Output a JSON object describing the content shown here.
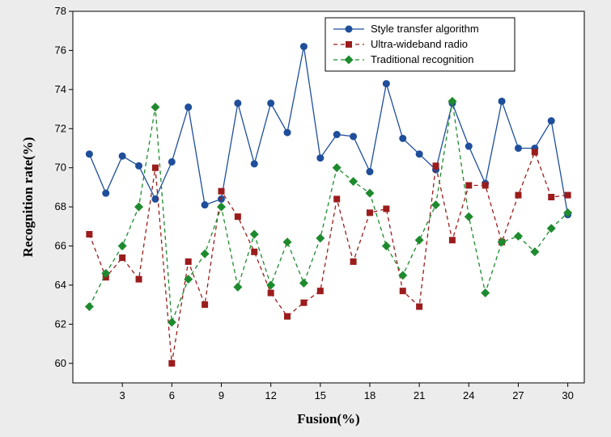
{
  "chart_data": {
    "type": "line",
    "xlabel": "Fusion(%)",
    "ylabel": "Recognition rate(%)",
    "xlim": [
      0,
      31
    ],
    "ylim": [
      59,
      78
    ],
    "xticks": [
      3,
      6,
      9,
      12,
      15,
      18,
      21,
      24,
      27,
      30
    ],
    "yticks": [
      60,
      62,
      64,
      66,
      68,
      70,
      72,
      74,
      76,
      78
    ],
    "grid": false,
    "legend_position": "top-right",
    "x": [
      1,
      2,
      3,
      4,
      5,
      6,
      7,
      8,
      9,
      10,
      11,
      12,
      13,
      14,
      15,
      16,
      17,
      18,
      19,
      20,
      21,
      22,
      23,
      24,
      25,
      26,
      27,
      28,
      29,
      30
    ],
    "series": [
      {
        "name": "Style transfer algorithm",
        "color": "#1f4e9a",
        "marker": "circle",
        "dash": "solid",
        "values": [
          70.7,
          68.7,
          70.6,
          70.1,
          68.4,
          70.3,
          73.1,
          68.1,
          68.4,
          73.3,
          70.2,
          73.3,
          71.8,
          76.2,
          70.5,
          71.7,
          71.6,
          69.8,
          74.3,
          71.5,
          70.7,
          69.9,
          73.3,
          71.1,
          69.2,
          73.4,
          71.0,
          71.0,
          72.4,
          67.6
        ]
      },
      {
        "name": "Ultra-wideband radio",
        "color": "#9b1c1c",
        "marker": "square",
        "dash": "dashed",
        "values": [
          66.6,
          64.4,
          65.4,
          64.3,
          70.0,
          60.0,
          65.2,
          63.0,
          68.8,
          67.5,
          65.7,
          63.6,
          62.4,
          63.1,
          63.7,
          68.4,
          65.2,
          67.7,
          67.9,
          63.7,
          62.9,
          70.1,
          66.3,
          69.1,
          69.1,
          66.2,
          68.6,
          70.8,
          68.5,
          68.6
        ]
      },
      {
        "name": "Traditional recognition",
        "color": "#1e8a2e",
        "marker": "diamond",
        "dash": "dashed",
        "values": [
          62.9,
          64.6,
          66.0,
          68.0,
          73.1,
          62.1,
          64.3,
          65.6,
          68.0,
          63.9,
          66.6,
          64.0,
          66.2,
          64.1,
          66.4,
          70.0,
          69.3,
          68.7,
          66.0,
          64.5,
          66.3,
          68.1,
          73.4,
          67.5,
          63.6,
          66.2,
          66.5,
          65.7,
          66.9,
          67.7
        ]
      }
    ]
  }
}
